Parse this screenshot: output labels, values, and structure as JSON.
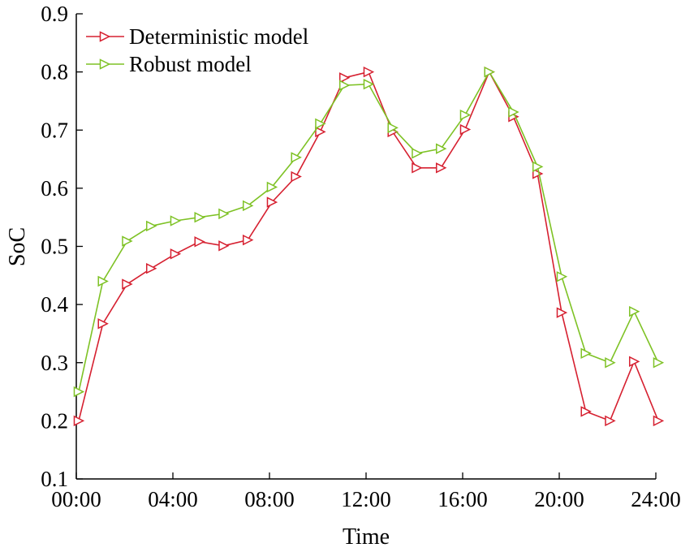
{
  "chart_data": {
    "type": "line",
    "xlabel": "Time",
    "ylabel": "SoC",
    "xlim": [
      0,
      24
    ],
    "ylim": [
      0.1,
      0.9
    ],
    "xticks": [
      {
        "value": 0,
        "label": "00:00"
      },
      {
        "value": 4,
        "label": "04:00"
      },
      {
        "value": 8,
        "label": "08:00"
      },
      {
        "value": 12,
        "label": "12:00"
      },
      {
        "value": 16,
        "label": "16:00"
      },
      {
        "value": 20,
        "label": "20:00"
      },
      {
        "value": 24,
        "label": "24:00"
      }
    ],
    "yticks": [
      {
        "value": 0.1,
        "label": "0.1"
      },
      {
        "value": 0.2,
        "label": "0.2"
      },
      {
        "value": 0.3,
        "label": "0.3"
      },
      {
        "value": 0.4,
        "label": "0.4"
      },
      {
        "value": 0.5,
        "label": "0.5"
      },
      {
        "value": 0.6,
        "label": "0.6"
      },
      {
        "value": 0.7,
        "label": "0.7"
      },
      {
        "value": 0.8,
        "label": "0.8"
      },
      {
        "value": 0.9,
        "label": "0.9"
      }
    ],
    "x": [
      0.1,
      1.1,
      2.1,
      3.1,
      4.1,
      5.1,
      6.1,
      7.1,
      8.1,
      9.1,
      10.1,
      11.1,
      12.1,
      13.1,
      14.1,
      15.1,
      16.1,
      17.1,
      18.1,
      19.1,
      20.1,
      21.1,
      22.1,
      23.1,
      24.1
    ],
    "series": [
      {
        "name": "Deterministic model",
        "color": "#d62030",
        "marker": "triangle-right",
        "values": [
          0.2,
          0.367,
          0.435,
          0.462,
          0.487,
          0.508,
          0.501,
          0.511,
          0.576,
          0.62,
          0.697,
          0.79,
          0.8,
          0.697,
          0.635,
          0.635,
          0.701,
          0.8,
          0.723,
          0.625,
          0.386,
          0.216,
          0.2,
          0.302,
          0.2
        ]
      },
      {
        "name": "Robust model",
        "color": "#7ec225",
        "marker": "triangle-right",
        "values": [
          0.25,
          0.44,
          0.509,
          0.535,
          0.544,
          0.55,
          0.556,
          0.57,
          0.602,
          0.653,
          0.711,
          0.777,
          0.779,
          0.704,
          0.66,
          0.668,
          0.726,
          0.8,
          0.731,
          0.637,
          0.448,
          0.316,
          0.3,
          0.388,
          0.3
        ]
      }
    ],
    "legend_position": "top-left",
    "grid": false
  }
}
